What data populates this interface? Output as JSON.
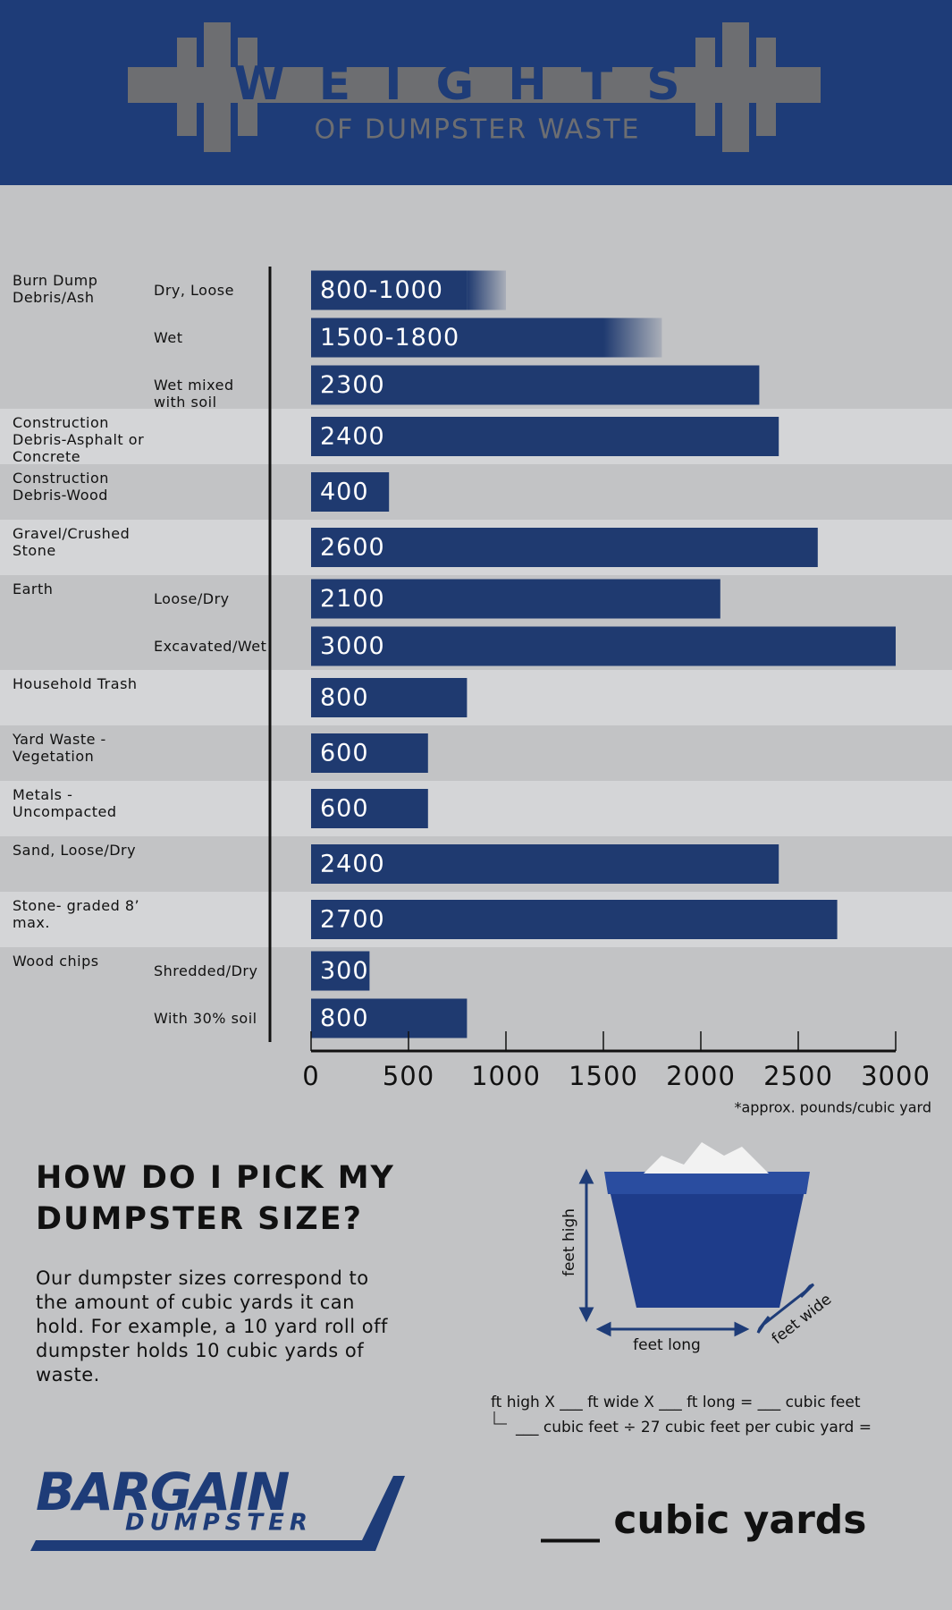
{
  "header": {
    "title": "WEIGHTS",
    "subtitle": "OF DUMPSTER WASTE"
  },
  "chart_data": {
    "type": "bar",
    "orientation": "horizontal",
    "color": "#1f3a70",
    "groups": [
      {
        "name": "Burn Dump Debris/Ash",
        "items": [
          {
            "label": "Dry, Loose",
            "value_from": 800,
            "value": 1000,
            "value_label": "800-1000"
          },
          {
            "label": "Wet",
            "value_from": 1500,
            "value": 1800,
            "value_label": "1500-1800"
          },
          {
            "label": "Wet mixed with soil",
            "value": 2300
          }
        ]
      },
      {
        "name": "Construction Debris-Asphalt or Concrete",
        "items": [
          {
            "value": 2400
          }
        ]
      },
      {
        "name": "Construction Debris-Wood",
        "items": [
          {
            "value": 400
          }
        ]
      },
      {
        "name": "Gravel/Crushed Stone",
        "items": [
          {
            "value": 2600
          }
        ]
      },
      {
        "name": "Earth",
        "items": [
          {
            "label": "Loose/Dry",
            "value": 2100
          },
          {
            "label": "Excavated/Wet",
            "value": 3000
          }
        ]
      },
      {
        "name": "Household Trash",
        "items": [
          {
            "value": 800
          }
        ]
      },
      {
        "name": "Yard Waste - Vegetation",
        "items": [
          {
            "value": 600
          }
        ]
      },
      {
        "name": "Metals - Uncompacted",
        "items": [
          {
            "value": 600
          }
        ]
      },
      {
        "name": "Sand, Loose/Dry",
        "items": [
          {
            "value": 2400
          }
        ]
      },
      {
        "name": "Stone- graded 8’ max.",
        "items": [
          {
            "value": 2700
          }
        ]
      },
      {
        "name": "Wood chips",
        "items": [
          {
            "label": "Shredded/Dry",
            "value": 300
          },
          {
            "label": "With 30% soil",
            "value": 800
          }
        ]
      }
    ],
    "xlim": [
      0,
      3000
    ],
    "xticks": [
      0,
      500,
      1000,
      1500,
      2000,
      2500,
      3000
    ],
    "note": "*approx. pounds/cubic yard"
  },
  "guide": {
    "heading": "HOW DO I PICK MY DUMPSTER SIZE?",
    "body": "Our dumpster sizes correspond to the amount of cubic yards it can hold. For example, a 10 yard roll off dumpster holds 10 cubic yards of waste.",
    "height_label": "feet high",
    "length_label": "feet long",
    "width_label": "feet wide",
    "formula_1": "ft high X ___ ft wide X ___ ft long = ___ cubic feet",
    "formula_2": "___ cubic feet ÷ 27 cubic feet per cubic yard =",
    "result": "___ cubic yards"
  },
  "logo": {
    "name": "BARGAIN",
    "tagline": "DUMPSTER"
  }
}
